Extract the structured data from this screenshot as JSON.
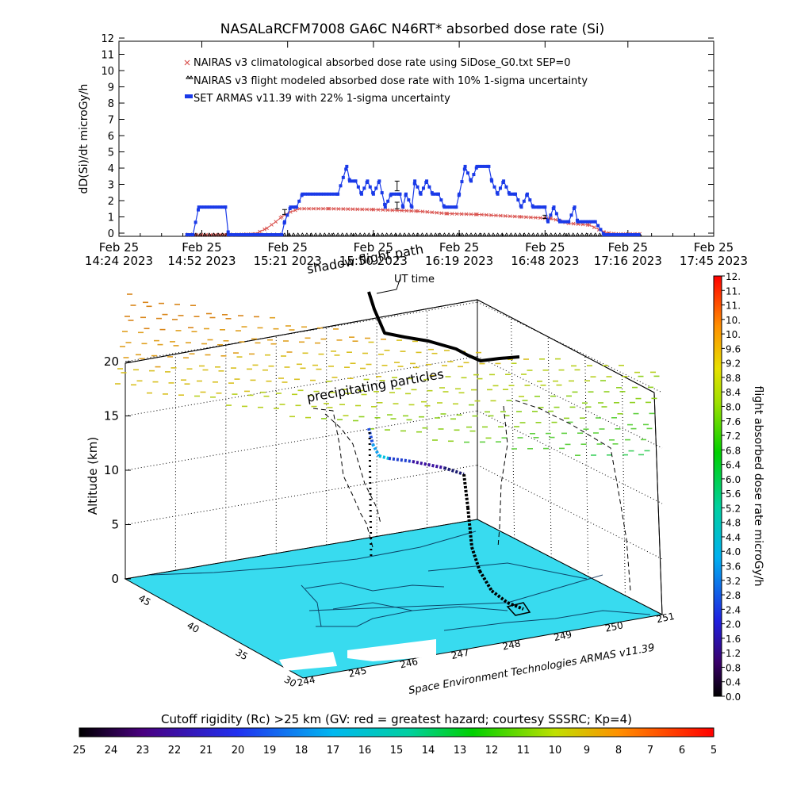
{
  "title": "NASALaRCFM7008   GA6C N46RT* absorbed dose rate (Si)",
  "chart_data": [
    {
      "type": "line",
      "ylabel": "dD(Si)/dt microGy/h",
      "ylim": [
        0,
        12
      ],
      "y_ticks": [
        "0",
        "1",
        "2",
        "3",
        "4",
        "5",
        "6",
        "7",
        "8",
        "9",
        "10",
        "11",
        "12"
      ],
      "x_ticks": [
        {
          "date": "Feb 25",
          "time": "14:24 2023",
          "t": "14:24"
        },
        {
          "date": "Feb 25",
          "time": "14:52 2023",
          "t": "14:52"
        },
        {
          "date": "Feb 25",
          "time": "15:21 2023",
          "t": "15:21"
        },
        {
          "date": "Feb 25",
          "time": "15:50 2023",
          "t": "15:50"
        },
        {
          "date": "Feb 25",
          "time": "16:19 2023",
          "t": "16:19"
        },
        {
          "date": "Feb 25",
          "time": "16:48 2023",
          "t": "16:48"
        },
        {
          "date": "Feb 25",
          "time": "17:16 2023",
          "t": "17:16"
        },
        {
          "date": "Feb 25",
          "time": "17:45 2023",
          "t": "17:45"
        }
      ],
      "xlim": [
        "14:24",
        "17:45"
      ],
      "series": [
        {
          "name": "NAIRAS v3 climatological absorbed dose rate using SiDose_G0.txt SEP=0",
          "color": "#d9534f",
          "marker": "x",
          "points": [
            [
              "14:47",
              0
            ],
            [
              "14:55",
              0
            ],
            [
              "15:03",
              0
            ],
            [
              "15:10",
              0.05
            ],
            [
              "15:14",
              0.4
            ],
            [
              "15:17",
              0.8
            ],
            [
              "15:19",
              1.1
            ],
            [
              "15:22",
              1.4
            ],
            [
              "15:25",
              1.6
            ],
            [
              "15:35",
              1.6
            ],
            [
              "15:50",
              1.55
            ],
            [
              "16:05",
              1.45
            ],
            [
              "16:15",
              1.3
            ],
            [
              "16:25",
              1.25
            ],
            [
              "16:40",
              1.1
            ],
            [
              "16:50",
              1.0
            ],
            [
              "16:56",
              0.7
            ],
            [
              "17:03",
              0.6
            ],
            [
              "17:08",
              0.15
            ],
            [
              "17:12",
              0.05
            ],
            [
              "17:20",
              0.05
            ]
          ]
        },
        {
          "name": "NAIRAS v3 flight modeled absorbed dose rate with 10% 1-sigma uncertainty",
          "color": "#000000",
          "marker": "triangle",
          "points": [
            [
              "14:47",
              0
            ],
            [
              "15:00",
              0
            ],
            [
              "15:10",
              0
            ],
            [
              "15:20",
              0
            ],
            [
              "15:30",
              0
            ],
            [
              "15:40",
              0
            ],
            [
              "15:50",
              0
            ],
            [
              "16:00",
              0
            ],
            [
              "16:10",
              0
            ],
            [
              "16:20",
              0
            ],
            [
              "16:30",
              0
            ],
            [
              "16:40",
              0
            ],
            [
              "16:50",
              0
            ],
            [
              "17:00",
              0
            ],
            [
              "17:10",
              0
            ],
            [
              "17:20",
              0
            ]
          ],
          "error_bars": [
            [
              "15:20",
              1.4,
              0.15
            ],
            [
              "15:58",
              1.8,
              0.2
            ],
            [
              "15:58",
              3.0,
              0.3
            ],
            [
              "16:48",
              1.1,
              0.1
            ]
          ]
        },
        {
          "name": "SET ARMAS v11.39 with 22% 1-sigma uncertainty",
          "color": "#1a3ae8",
          "marker": "square",
          "points": [
            [
              "14:47",
              0
            ],
            [
              "14:49",
              0
            ],
            [
              "14:51",
              1.7
            ],
            [
              "15:00",
              1.7
            ],
            [
              "15:01",
              0
            ],
            [
              "15:10",
              0
            ],
            [
              "15:19",
              0
            ],
            [
              "15:20",
              0.8
            ],
            [
              "15:22",
              1.7
            ],
            [
              "15:24",
              1.7
            ],
            [
              "15:26",
              2.5
            ],
            [
              "15:38",
              2.5
            ],
            [
              "15:41",
              4.2
            ],
            [
              "15:42",
              3.3
            ],
            [
              "15:44",
              3.3
            ],
            [
              "15:46",
              2.5
            ],
            [
              "15:48",
              3.3
            ],
            [
              "15:50",
              2.5
            ],
            [
              "15:52",
              3.3
            ],
            [
              "15:54",
              1.7
            ],
            [
              "15:56",
              2.5
            ],
            [
              "15:59",
              2.5
            ],
            [
              "16:00",
              1.7
            ],
            [
              "16:01",
              2.5
            ],
            [
              "16:03",
              1.7
            ],
            [
              "16:04",
              3.3
            ],
            [
              "16:06",
              2.5
            ],
            [
              "16:08",
              3.3
            ],
            [
              "16:10",
              2.5
            ],
            [
              "16:12",
              2.5
            ],
            [
              "16:14",
              1.7
            ],
            [
              "16:18",
              1.7
            ],
            [
              "16:19",
              2.5
            ],
            [
              "16:21",
              4.2
            ],
            [
              "16:23",
              3.3
            ],
            [
              "16:25",
              4.2
            ],
            [
              "16:29",
              4.2
            ],
            [
              "16:30",
              3.3
            ],
            [
              "16:32",
              2.5
            ],
            [
              "16:34",
              3.3
            ],
            [
              "16:36",
              2.5
            ],
            [
              "16:38",
              2.5
            ],
            [
              "16:40",
              1.7
            ],
            [
              "16:42",
              2.5
            ],
            [
              "16:44",
              1.7
            ],
            [
              "16:46",
              1.7
            ],
            [
              "16:48",
              1.7
            ],
            [
              "16:49",
              0.8
            ],
            [
              "16:51",
              1.7
            ],
            [
              "16:53",
              0.8
            ],
            [
              "16:56",
              0.8
            ],
            [
              "16:58",
              1.7
            ],
            [
              "16:59",
              0.8
            ],
            [
              "17:05",
              0.8
            ],
            [
              "17:08",
              0
            ],
            [
              "17:20",
              0
            ]
          ]
        }
      ]
    },
    {
      "type": "scatter",
      "ylabel": "Altitude (km)",
      "z_ticks": [
        "0",
        "5",
        "10",
        "15",
        "20"
      ],
      "x_ticks": [
        "244",
        "245",
        "246",
        "247",
        "248",
        "249",
        "250",
        "251"
      ],
      "y_ticks": [
        "30",
        "35",
        "40",
        "45"
      ],
      "annotations": [
        "precipitating particles",
        "shadow flight path",
        "UT time",
        "Space Environment Technologies ARMAS v11.39"
      ]
    }
  ],
  "colorbar_right": {
    "label": "flight absorbed dose rate microGy/h",
    "ticks": [
      "0.0",
      "0.4",
      "0.8",
      "1.2",
      "1.6",
      "2.0",
      "2.4",
      "2.8",
      "3.2",
      "3.6",
      "4.0",
      "4.4",
      "4.8",
      "5.2",
      "5.6",
      "6.0",
      "6.4",
      "6.8",
      "7.2",
      "7.6",
      "8.0",
      "8.4",
      "8.8",
      "9.2",
      "9.6",
      "10.",
      "10.",
      "11.",
      "11.",
      "12."
    ]
  },
  "colorbar_bottom": {
    "label": "Cutoff rigidity (Rc) >25 km (GV: red = greatest hazard; courtesy SSSRC; Kp=4)",
    "ticks": [
      "25",
      "24",
      "23",
      "22",
      "21",
      "20",
      "19",
      "18",
      "17",
      "16",
      "15",
      "14",
      "13",
      "12",
      "11",
      "10",
      "9",
      "8",
      "7",
      "6",
      "5"
    ]
  }
}
